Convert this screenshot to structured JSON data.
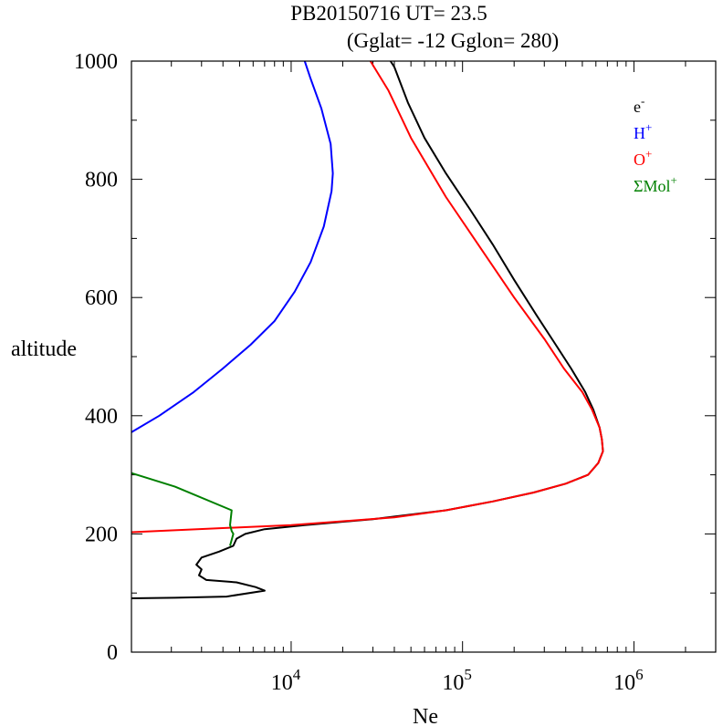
{
  "chart_data": {
    "type": "line",
    "title": "PB20150716   UT=  23.5",
    "subtitle": "(Gglat= -12   Gglon=  280)",
    "xlabel": "Ne",
    "ylabel": "altitude",
    "xscale": "log",
    "xlim": [
      1170,
      3000000
    ],
    "ylim": [
      0,
      1000
    ],
    "yticks": [
      0,
      200,
      400,
      600,
      800,
      1000
    ],
    "yticklabels": [
      "0",
      "200",
      "400",
      "600",
      "800",
      "1000"
    ],
    "xticks": [
      {
        "value": 10000,
        "base": "10",
        "exp": "4"
      },
      {
        "value": 100000,
        "base": "10",
        "exp": "5"
      },
      {
        "value": 1000000,
        "base": "10",
        "exp": "6"
      }
    ],
    "grid": false,
    "legend_position": "top-right",
    "series": [
      {
        "name": "e",
        "name_sup": "-",
        "color": "#000000",
        "points": [
          [
            1170,
            91
          ],
          [
            2100,
            92
          ],
          [
            4200,
            94
          ],
          [
            7000,
            104
          ],
          [
            6200,
            110
          ],
          [
            4800,
            118
          ],
          [
            3200,
            122
          ],
          [
            2900,
            130
          ],
          [
            3000,
            140
          ],
          [
            2800,
            148
          ],
          [
            3000,
            160
          ],
          [
            3800,
            170
          ],
          [
            4600,
            180
          ],
          [
            4800,
            192
          ],
          [
            5400,
            200
          ],
          [
            7000,
            208
          ],
          [
            12000,
            215
          ],
          [
            30000,
            225
          ],
          [
            80000,
            240
          ],
          [
            150000,
            255
          ],
          [
            260000,
            270
          ],
          [
            400000,
            285
          ],
          [
            540000,
            300
          ],
          [
            620000,
            320
          ],
          [
            660000,
            340
          ],
          [
            650000,
            360
          ],
          [
            630000,
            380
          ],
          [
            580000,
            410
          ],
          [
            520000,
            440
          ],
          [
            430000,
            480
          ],
          [
            350000,
            520
          ],
          [
            270000,
            570
          ],
          [
            200000,
            630
          ],
          [
            150000,
            690
          ],
          [
            110000,
            750
          ],
          [
            80000,
            810
          ],
          [
            60000,
            870
          ],
          [
            48000,
            930
          ],
          [
            40000,
            990
          ],
          [
            38000,
            1000
          ]
        ]
      },
      {
        "name": "H",
        "name_sup": "+",
        "color": "#0000ff",
        "points": [
          [
            1170,
            372
          ],
          [
            1700,
            400
          ],
          [
            2700,
            440
          ],
          [
            4000,
            480
          ],
          [
            5800,
            520
          ],
          [
            8000,
            560
          ],
          [
            10500,
            610
          ],
          [
            13000,
            660
          ],
          [
            15500,
            720
          ],
          [
            17200,
            780
          ],
          [
            17500,
            810
          ],
          [
            17000,
            860
          ],
          [
            15000,
            920
          ],
          [
            13000,
            970
          ],
          [
            12000,
            1000
          ]
        ]
      },
      {
        "name": "O",
        "name_sup": "+",
        "color": "#ff0000",
        "points": [
          [
            1170,
            203
          ],
          [
            10000,
            215
          ],
          [
            40000,
            228
          ],
          [
            80000,
            240
          ],
          [
            150000,
            255
          ],
          [
            260000,
            270
          ],
          [
            400000,
            285
          ],
          [
            540000,
            300
          ],
          [
            620000,
            320
          ],
          [
            660000,
            340
          ],
          [
            650000,
            360
          ],
          [
            630000,
            380
          ],
          [
            570000,
            410
          ],
          [
            500000,
            440
          ],
          [
            390000,
            480
          ],
          [
            300000,
            530
          ],
          [
            200000,
            600
          ],
          [
            130000,
            680
          ],
          [
            80000,
            770
          ],
          [
            50000,
            870
          ],
          [
            37000,
            950
          ],
          [
            29000,
            1000
          ]
        ]
      },
      {
        "name": "ΣMol",
        "name_sup": "+",
        "color": "#008000",
        "points": [
          [
            1170,
            303
          ],
          [
            2100,
            280
          ],
          [
            4500,
            240
          ],
          [
            4400,
            215
          ],
          [
            4500,
            205
          ],
          [
            4600,
            200
          ],
          [
            4500,
            190
          ],
          [
            4400,
            180
          ]
        ]
      }
    ]
  }
}
